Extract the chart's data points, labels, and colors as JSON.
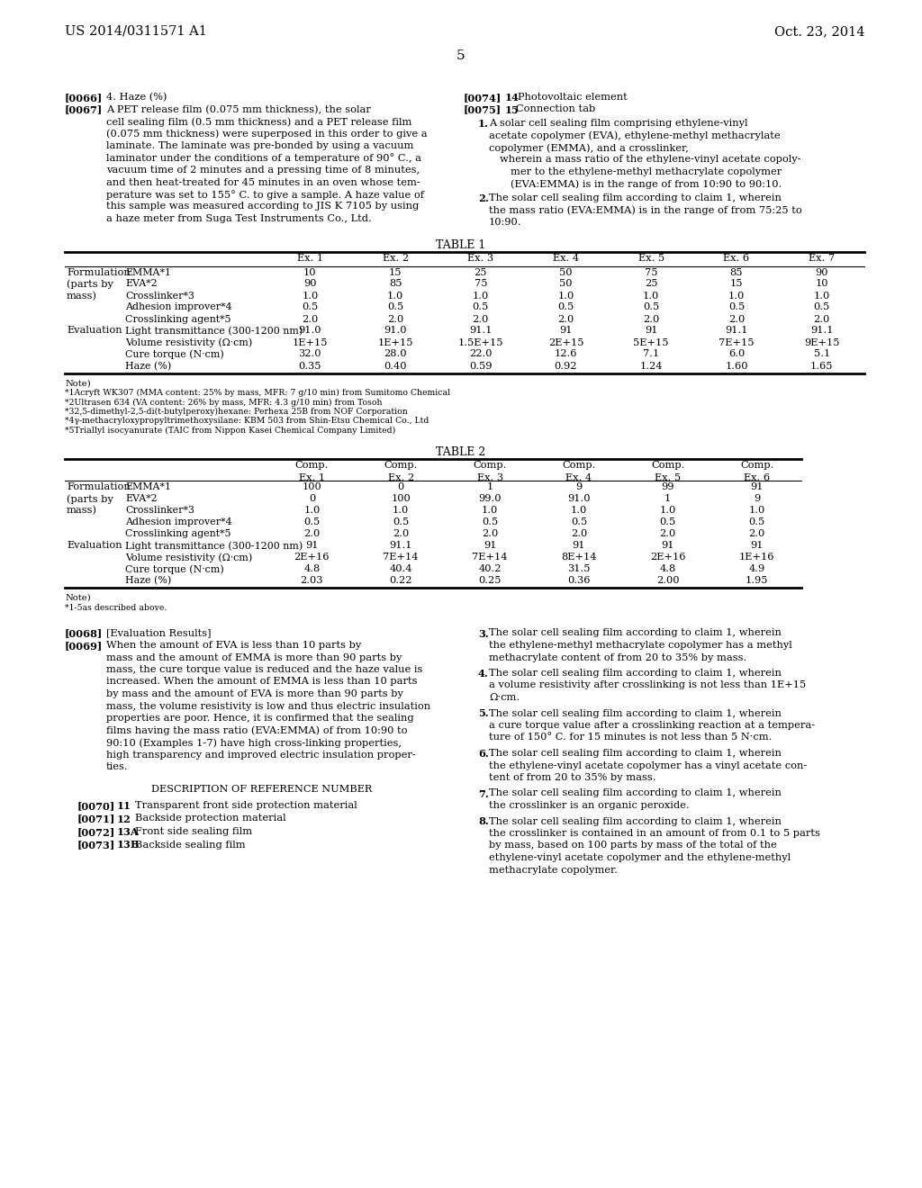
{
  "background_color": "#ffffff",
  "header_left": "US 2014/0311571 A1",
  "header_right": "Oct. 23, 2014",
  "page_number": "5",
  "table1": {
    "title": "TABLE 1",
    "col_headers": [
      "Ex. 1",
      "Ex. 2",
      "Ex. 3",
      "Ex. 4",
      "Ex. 5",
      "Ex. 6",
      "Ex. 7"
    ],
    "rows": [
      [
        "Formulation",
        "EMMA*1",
        "10",
        "15",
        "25",
        "50",
        "75",
        "85",
        "90"
      ],
      [
        "(parts by",
        "EVA*2",
        "90",
        "85",
        "75",
        "50",
        "25",
        "15",
        "10"
      ],
      [
        "mass)",
        "Crosslinker*3",
        "1.0",
        "1.0",
        "1.0",
        "1.0",
        "1.0",
        "1.0",
        "1.0"
      ],
      [
        "",
        "Adhesion improver*4",
        "0.5",
        "0.5",
        "0.5",
        "0.5",
        "0.5",
        "0.5",
        "0.5"
      ],
      [
        "",
        "Crosslinking agent*5",
        "2.0",
        "2.0",
        "2.0",
        "2.0",
        "2.0",
        "2.0",
        "2.0"
      ],
      [
        "Evaluation",
        "Light transmittance (300-1200 nm)",
        "91.0",
        "91.0",
        "91.1",
        "91",
        "91",
        "91.1",
        "91.1"
      ],
      [
        "",
        "Volume resistivity (Ω·cm)",
        "1E+15",
        "1E+15",
        "1.5E+15",
        "2E+15",
        "5E+15",
        "7E+15",
        "9E+15"
      ],
      [
        "",
        "Cure torque (N·cm)",
        "32.0",
        "28.0",
        "22.0",
        "12.6",
        "7.1",
        "6.0",
        "5.1"
      ],
      [
        "",
        "Haze (%)",
        "0.35",
        "0.40",
        "0.59",
        "0.92",
        "1.24",
        "1.60",
        "1.65"
      ]
    ],
    "notes": [
      "Note)",
      "*1Acryft WK307 (MMA content: 25% by mass, MFR: 7 g/10 min) from Sumitomo Chemical",
      "*2Ultrasen 634 (VA content: 26% by mass, MFR: 4.3 g/10 min) from Tosoh",
      "*32,5-dimethyl-2,5-di(t-butylperoxy)hexane: Perhexa 25B from NOF Corporation",
      "*4γ-methacryloxypropyltrimethoxysilane: KBM 503 from Shin-Etsu Chemical Co., Ltd",
      "*5Triallyl isocyanurate (TAIC from Nippon Kasei Chemical Company Limited)"
    ]
  },
  "table2": {
    "title": "TABLE 2",
    "col_headers": [
      "Comp.\nEx. 1",
      "Comp.\nEx. 2",
      "Comp.\nEx. 3",
      "Comp.\nEx. 4",
      "Comp.\nEx. 5",
      "Comp.\nEx. 6"
    ],
    "rows": [
      [
        "Formulation",
        "EMMA*1",
        "100",
        "0",
        "1",
        "9",
        "99",
        "91"
      ],
      [
        "(parts by",
        "EVA*2",
        "0",
        "100",
        "99.0",
        "91.0",
        "1",
        "9"
      ],
      [
        "mass)",
        "Crosslinker*3",
        "1.0",
        "1.0",
        "1.0",
        "1.0",
        "1.0",
        "1.0"
      ],
      [
        "",
        "Adhesion improver*4",
        "0.5",
        "0.5",
        "0.5",
        "0.5",
        "0.5",
        "0.5"
      ],
      [
        "",
        "Crosslinking agent*5",
        "2.0",
        "2.0",
        "2.0",
        "2.0",
        "2.0",
        "2.0"
      ],
      [
        "Evaluation",
        "Light transmittance (300-1200 nm)",
        "91",
        "91.1",
        "91",
        "91",
        "91",
        "91"
      ],
      [
        "",
        "Volume resistivity (Ω·cm)",
        "2E+16",
        "7E+14",
        "7E+14",
        "8E+14",
        "2E+16",
        "1E+16"
      ],
      [
        "",
        "Cure torque (N·cm)",
        "4.8",
        "40.4",
        "40.2",
        "31.5",
        "4.8",
        "4.9"
      ],
      [
        "",
        "Haze (%)",
        "2.03",
        "0.22",
        "0.25",
        "0.36",
        "2.00",
        "1.95"
      ]
    ],
    "notes": [
      "Note)",
      "*1-5as described above."
    ]
  }
}
